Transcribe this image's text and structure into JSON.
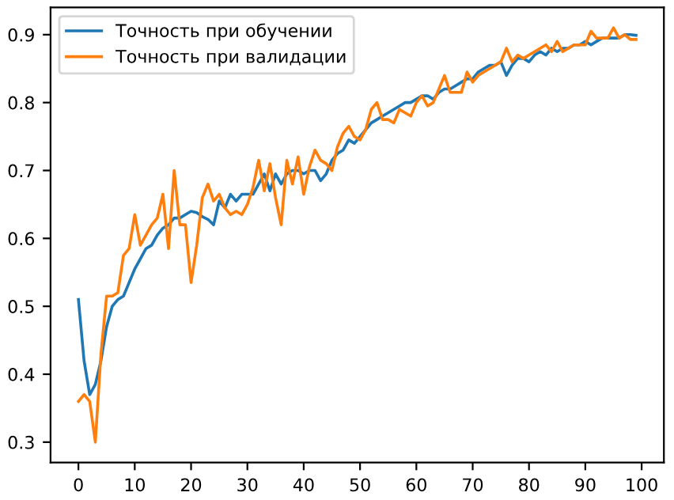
{
  "chart_data": {
    "type": "line",
    "x": [
      0,
      1,
      2,
      3,
      4,
      5,
      6,
      7,
      8,
      9,
      10,
      11,
      12,
      13,
      14,
      15,
      16,
      17,
      18,
      19,
      20,
      21,
      22,
      23,
      24,
      25,
      26,
      27,
      28,
      29,
      30,
      31,
      32,
      33,
      34,
      35,
      36,
      37,
      38,
      39,
      40,
      41,
      42,
      43,
      44,
      45,
      46,
      47,
      48,
      49,
      50,
      51,
      52,
      53,
      54,
      55,
      56,
      57,
      58,
      59,
      60,
      61,
      62,
      63,
      64,
      65,
      66,
      67,
      68,
      69,
      70,
      71,
      72,
      73,
      74,
      75,
      76,
      77,
      78,
      79,
      80,
      81,
      82,
      83,
      84,
      85,
      86,
      87,
      88,
      89,
      90,
      91,
      92,
      93,
      94,
      95,
      96,
      97,
      98,
      99
    ],
    "series": [
      {
        "name": "Точность при обучении",
        "color": "#1f77b4",
        "values": [
          0.51,
          0.42,
          0.37,
          0.385,
          0.42,
          0.47,
          0.5,
          0.51,
          0.515,
          0.535,
          0.555,
          0.57,
          0.585,
          0.59,
          0.605,
          0.615,
          0.62,
          0.63,
          0.63,
          0.635,
          0.64,
          0.638,
          0.632,
          0.628,
          0.62,
          0.655,
          0.645,
          0.665,
          0.655,
          0.665,
          0.665,
          0.665,
          0.68,
          0.695,
          0.67,
          0.695,
          0.68,
          0.695,
          0.7,
          0.7,
          0.695,
          0.7,
          0.7,
          0.685,
          0.695,
          0.715,
          0.725,
          0.73,
          0.745,
          0.74,
          0.75,
          0.76,
          0.77,
          0.775,
          0.78,
          0.785,
          0.79,
          0.795,
          0.8,
          0.8,
          0.805,
          0.81,
          0.81,
          0.805,
          0.815,
          0.82,
          0.82,
          0.825,
          0.83,
          0.835,
          0.835,
          0.845,
          0.85,
          0.855,
          0.855,
          0.86,
          0.84,
          0.855,
          0.865,
          0.865,
          0.86,
          0.87,
          0.875,
          0.87,
          0.88,
          0.875,
          0.88,
          0.88,
          0.885,
          0.885,
          0.89,
          0.885,
          0.89,
          0.895,
          0.895,
          0.895,
          0.895,
          0.9,
          0.9,
          0.899
        ]
      },
      {
        "name": "Точность при валидации",
        "color": "#ff7f0e",
        "values": [
          0.36,
          0.37,
          0.36,
          0.3,
          0.43,
          0.515,
          0.515,
          0.52,
          0.575,
          0.585,
          0.635,
          0.59,
          0.605,
          0.62,
          0.63,
          0.665,
          0.585,
          0.7,
          0.62,
          0.62,
          0.535,
          0.59,
          0.66,
          0.68,
          0.655,
          0.665,
          0.645,
          0.635,
          0.64,
          0.635,
          0.65,
          0.675,
          0.715,
          0.67,
          0.71,
          0.66,
          0.62,
          0.715,
          0.68,
          0.72,
          0.665,
          0.705,
          0.73,
          0.715,
          0.71,
          0.7,
          0.735,
          0.755,
          0.765,
          0.75,
          0.745,
          0.76,
          0.79,
          0.8,
          0.775,
          0.775,
          0.77,
          0.79,
          0.785,
          0.78,
          0.8,
          0.81,
          0.795,
          0.8,
          0.82,
          0.84,
          0.815,
          0.815,
          0.815,
          0.845,
          0.83,
          0.84,
          0.845,
          0.85,
          0.855,
          0.86,
          0.88,
          0.86,
          0.87,
          0.865,
          0.87,
          0.875,
          0.88,
          0.885,
          0.875,
          0.89,
          0.875,
          0.88,
          0.885,
          0.885,
          0.885,
          0.905,
          0.895,
          0.895,
          0.895,
          0.91,
          0.895,
          0.9,
          0.893,
          0.893
        ]
      }
    ],
    "xlim": [
      -4.95,
      103.95
    ],
    "ylim": [
      0.27,
      0.94
    ],
    "xticks": [
      0,
      10,
      20,
      30,
      40,
      50,
      60,
      70,
      80,
      90,
      100
    ],
    "yticks": [
      0.3,
      0.4,
      0.5,
      0.6,
      0.7,
      0.8,
      0.9
    ],
    "legend": "top left",
    "grid": false
  }
}
